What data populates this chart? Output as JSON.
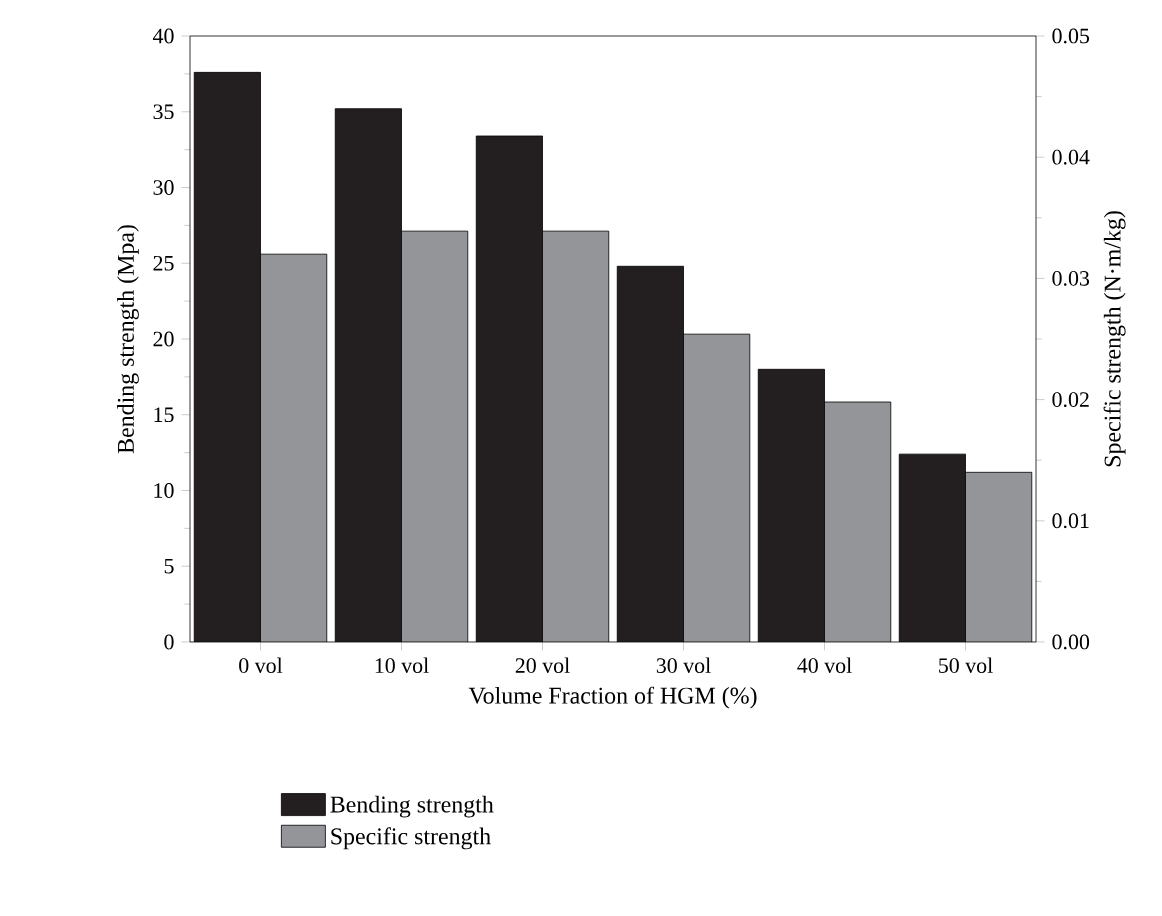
{
  "chart_data": {
    "type": "bar",
    "xlabel": "Volume Fraction of HGM (%)",
    "ylabel": "Bending strength (Mpa)",
    "y2label": "Specific strength (N·m/kg)",
    "categories": [
      "0 vol",
      "10 vol",
      "20 vol",
      "30 vol",
      "40 vol",
      "50 vol"
    ],
    "series": [
      {
        "name": "Bending strength",
        "color": "#231f20",
        "values": [
          37.6,
          35.2,
          33.4,
          24.8,
          18.0,
          12.4
        ]
      },
      {
        "name": "Specific strength",
        "color": "#939598",
        "axis": "y2",
        "values": [
          0.032,
          0.0339,
          0.0339,
          0.0254,
          0.0198,
          0.014
        ]
      }
    ],
    "ylim": [
      0,
      40
    ],
    "yticks": [
      0,
      5,
      10,
      15,
      20,
      25,
      30,
      35,
      40
    ],
    "y2lim": [
      0,
      0.05
    ],
    "y2ticks": [
      {
        "value": 0,
        "label": "0.00"
      },
      0.01,
      0.02,
      0.03,
      0.04,
      0.05
    ],
    "legend": "bottom",
    "grid": false
  }
}
